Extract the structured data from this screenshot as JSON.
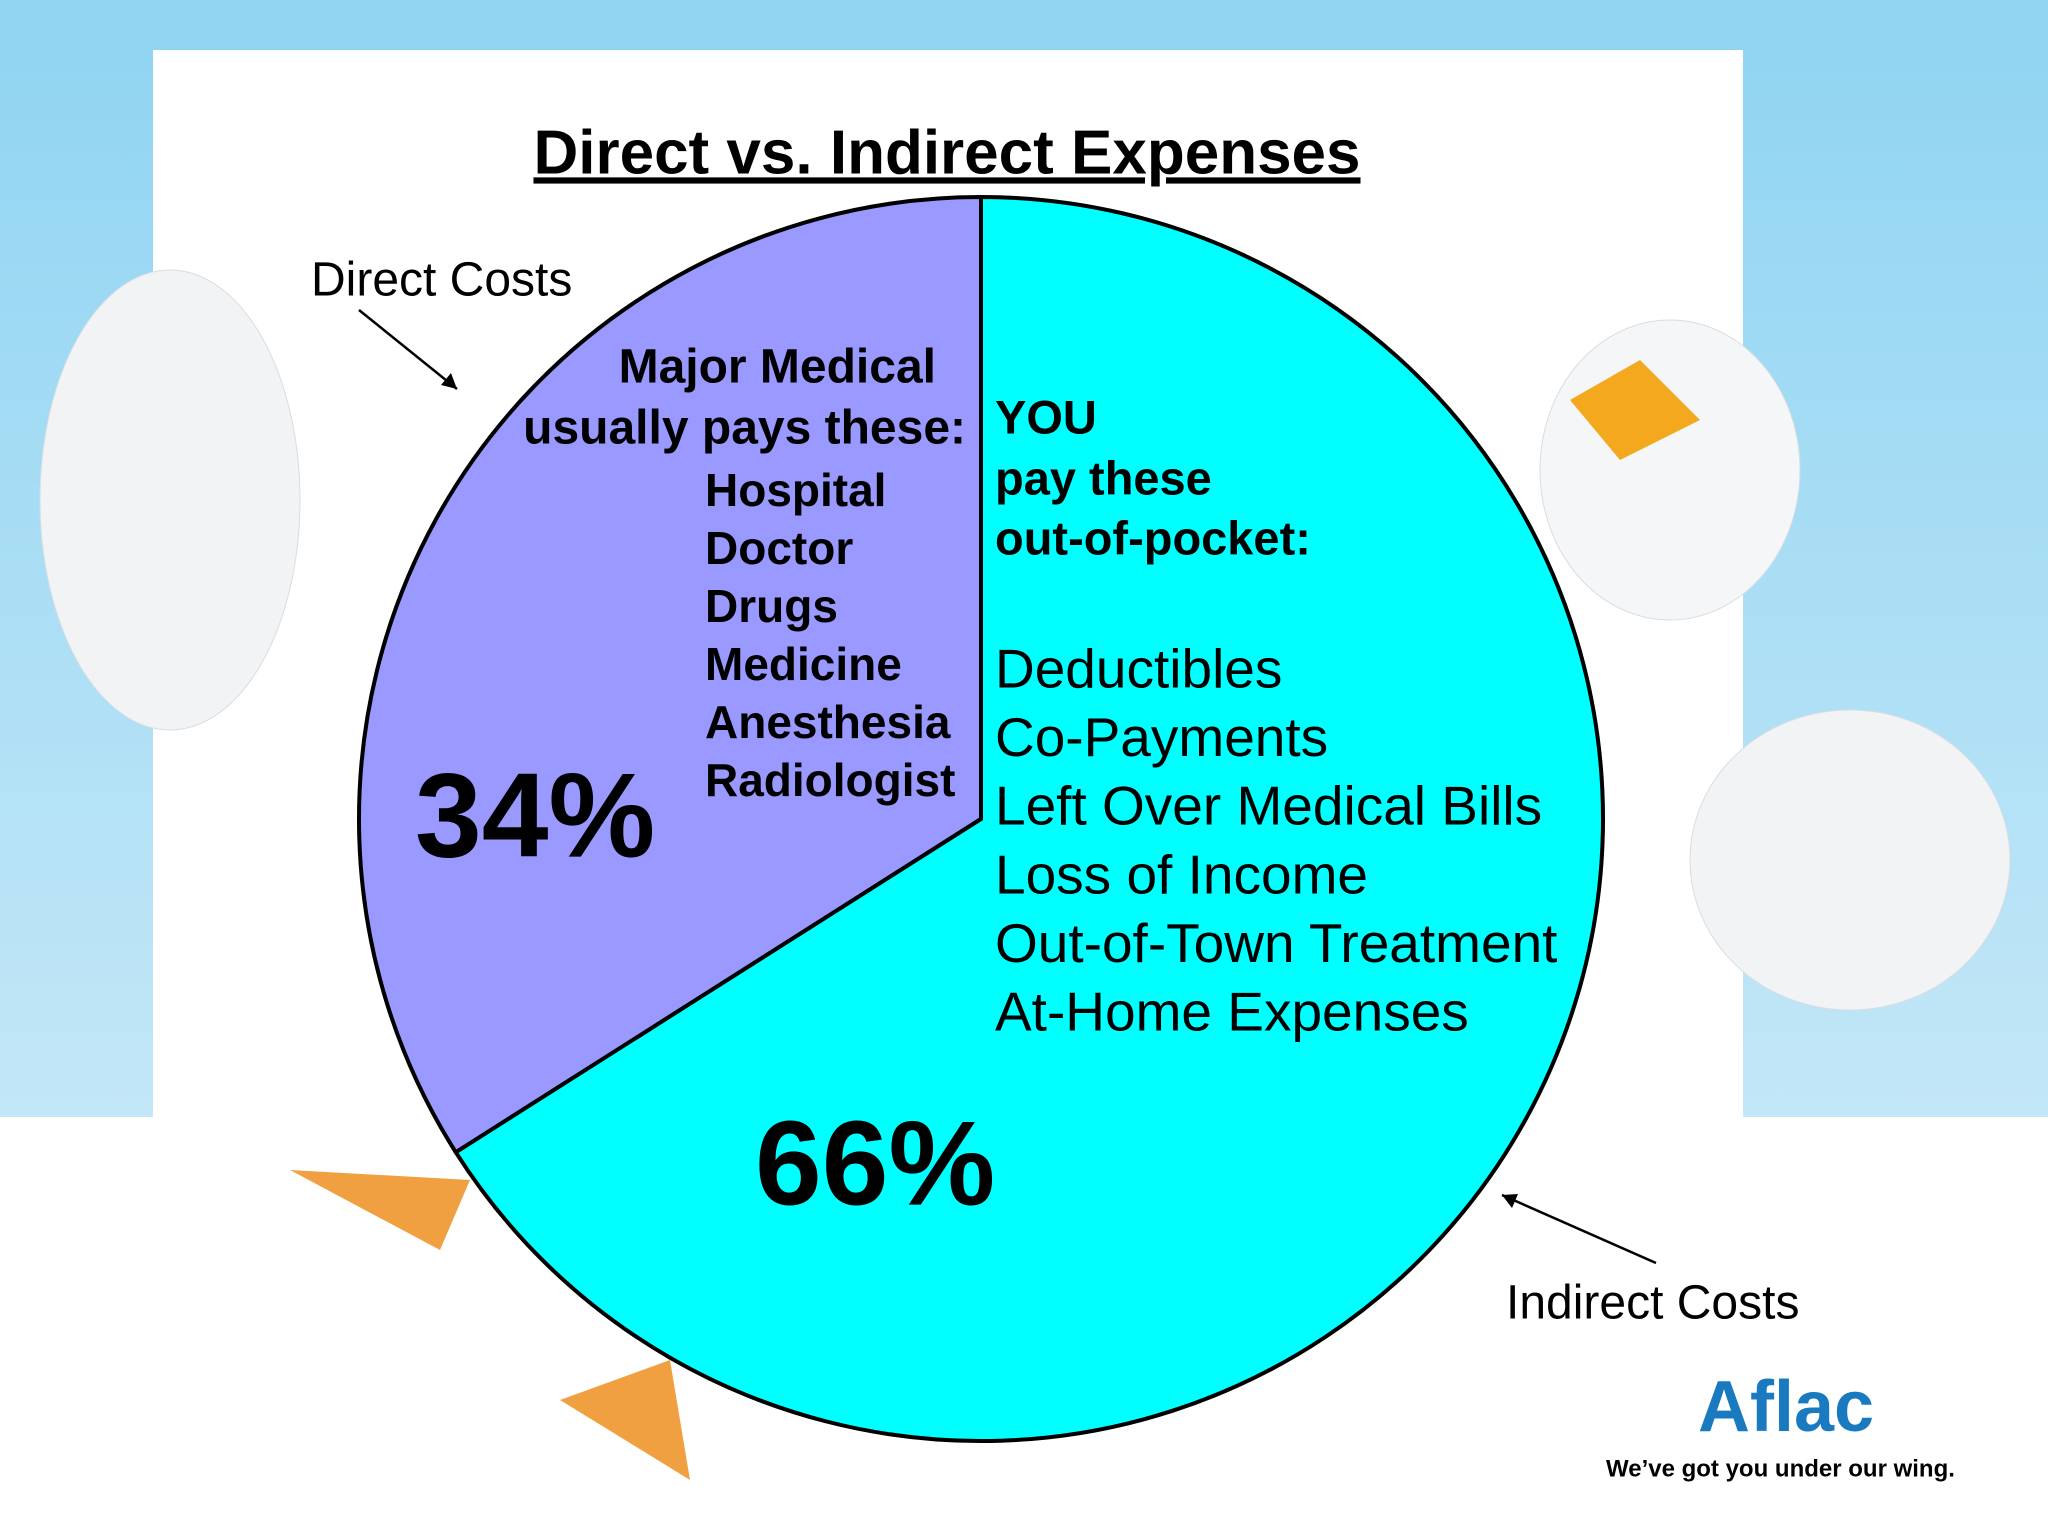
{
  "chart_data": {
    "type": "pie",
    "title": "Direct vs. Indirect Expenses",
    "categories": [
      "Direct Costs",
      "Indirect Costs"
    ],
    "values": [
      34,
      66
    ],
    "value_labels": [
      "34%",
      "66%"
    ],
    "colors": [
      "#9999ff",
      "#00ffff"
    ],
    "direct_notes": {
      "heading": [
        "Major Medical",
        "usually pays these:"
      ],
      "items": [
        "Hospital",
        "Doctor",
        "Drugs",
        "Medicine",
        "Anesthesia",
        "Radiologist"
      ]
    },
    "indirect_notes": {
      "heading": [
        "YOU",
        "pay these",
        "out-of-pocket:"
      ],
      "items": [
        "Deductibles",
        "Co-Payments",
        "Left Over Medical Bills",
        "Loss of Income",
        "Out-of-Town Treatment",
        "At-Home Expenses"
      ]
    }
  },
  "logo": {
    "brand": "Aflac",
    "tagline": "We’ve got you under our wing."
  }
}
